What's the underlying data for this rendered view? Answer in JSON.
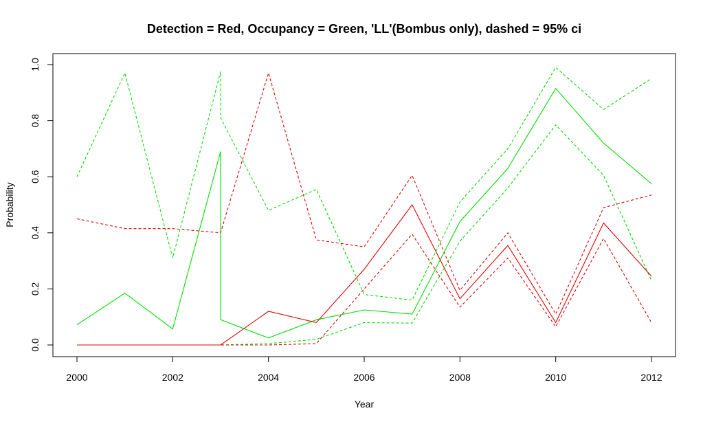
{
  "chart_data": {
    "type": "line",
    "title": "Detection = Red, Occupancy = Green, 'LL'(Bombus only), dashed = 95% ci",
    "xlabel": "Year",
    "ylabel": "Probability",
    "xlim": [
      2000,
      2012
    ],
    "ylim": [
      0,
      1
    ],
    "x_ticks": [
      "2000",
      "2002",
      "2004",
      "2006",
      "2008",
      "2010",
      "2012"
    ],
    "y_ticks": [
      "0.0",
      "0.2",
      "0.4",
      "0.6",
      "0.8",
      "1.0"
    ],
    "grid": false,
    "legend": "none",
    "series": [
      {
        "color": "#00dd00",
        "dash": false,
        "points": [
          [
            2000,
            0.072
          ],
          [
            2001,
            0.185
          ],
          [
            2002,
            0.057
          ],
          [
            2003,
            0.69
          ],
          [
            2003,
            0.09
          ],
          [
            2004,
            0.025
          ],
          [
            2005,
            0.09
          ],
          [
            2006,
            0.125
          ],
          [
            2007,
            0.11
          ],
          [
            2008,
            0.44
          ],
          [
            2009,
            0.63
          ],
          [
            2010,
            0.915
          ],
          [
            2011,
            0.72
          ],
          [
            2012,
            0.575
          ]
        ]
      },
      {
        "color": "#00dd00",
        "dash": true,
        "points": [
          [
            2000,
            0.6
          ],
          [
            2001,
            0.97
          ],
          [
            2002,
            0.31
          ],
          [
            2003,
            0.975
          ],
          [
            2003,
            0.81
          ],
          [
            2004,
            0.48
          ],
          [
            2005,
            0.555
          ],
          [
            2006,
            0.18
          ],
          [
            2007,
            0.16
          ],
          [
            2008,
            0.51
          ],
          [
            2009,
            0.7
          ],
          [
            2010,
            0.99
          ],
          [
            2011,
            0.84
          ],
          [
            2012,
            0.95
          ]
        ]
      },
      {
        "color": "#00dd00",
        "dash": true,
        "points": [
          [
            2000,
            0.0
          ],
          [
            2001,
            0.0
          ],
          [
            2002,
            0.0
          ],
          [
            2003,
            0.0
          ],
          [
            2004,
            0.005
          ],
          [
            2005,
            0.02
          ],
          [
            2006,
            0.08
          ],
          [
            2007,
            0.078
          ],
          [
            2008,
            0.37
          ],
          [
            2009,
            0.56
          ],
          [
            2010,
            0.785
          ],
          [
            2011,
            0.605
          ],
          [
            2012,
            0.23
          ]
        ]
      },
      {
        "color": "#dd0000",
        "dash": false,
        "points": [
          [
            2000,
            0.0
          ],
          [
            2001,
            0.0
          ],
          [
            2002,
            0.0
          ],
          [
            2003,
            0.0
          ],
          [
            2004,
            0.12
          ],
          [
            2005,
            0.08
          ],
          [
            2006,
            0.27
          ],
          [
            2007,
            0.5
          ],
          [
            2008,
            0.165
          ],
          [
            2009,
            0.355
          ],
          [
            2010,
            0.08
          ],
          [
            2011,
            0.435
          ],
          [
            2012,
            0.245
          ]
        ]
      },
      {
        "color": "#dd0000",
        "dash": true,
        "points": [
          [
            2000,
            0.45
          ],
          [
            2001,
            0.415
          ],
          [
            2002,
            0.415
          ],
          [
            2003,
            0.4
          ],
          [
            2004,
            0.97
          ],
          [
            2005,
            0.375
          ],
          [
            2006,
            0.35
          ],
          [
            2007,
            0.605
          ],
          [
            2008,
            0.195
          ],
          [
            2009,
            0.4
          ],
          [
            2010,
            0.11
          ],
          [
            2011,
            0.49
          ],
          [
            2012,
            0.535
          ]
        ]
      },
      {
        "color": "#dd0000",
        "dash": true,
        "points": [
          [
            2000,
            0.0
          ],
          [
            2001,
            0.0
          ],
          [
            2002,
            0.0
          ],
          [
            2003,
            0.0
          ],
          [
            2004,
            0.0
          ],
          [
            2005,
            0.005
          ],
          [
            2006,
            0.2
          ],
          [
            2007,
            0.395
          ],
          [
            2008,
            0.135
          ],
          [
            2009,
            0.31
          ],
          [
            2010,
            0.065
          ],
          [
            2011,
            0.38
          ],
          [
            2012,
            0.08
          ]
        ]
      }
    ]
  }
}
